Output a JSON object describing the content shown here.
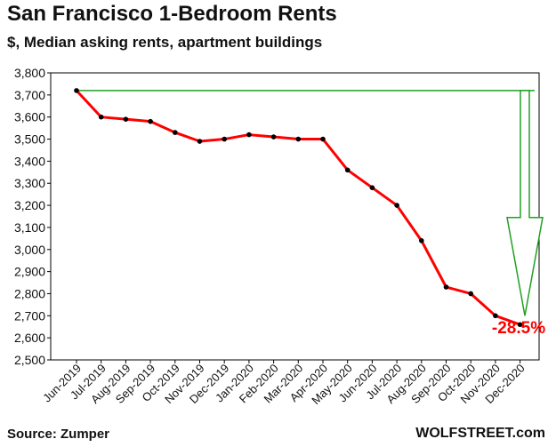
{
  "chart_data": {
    "type": "line",
    "title": "San Francisco 1-Bedroom Rents",
    "subtitle": "$, Median asking rents, apartment buildings",
    "source": "Source: Zumper",
    "brand": "WOLFSTREET.com",
    "categories": [
      "Jun-2019",
      "Jul-2019",
      "Aug-2019",
      "Sep-2019",
      "Oct-2019",
      "Nov-2019",
      "Dec-2019",
      "Jan-2020",
      "Feb-2020",
      "Mar-2020",
      "Apr-2020",
      "May-2020",
      "Jun-2020",
      "Jul-2020",
      "Aug-2020",
      "Sep-2020",
      "Oct-2020",
      "Nov-2020",
      "Dec-2020"
    ],
    "series": [
      {
        "values": [
          3720,
          3600,
          3590,
          3580,
          3530,
          3490,
          3500,
          3520,
          3510,
          3500,
          3500,
          3360,
          3280,
          3200,
          3040,
          2830,
          2800,
          2700,
          2660
        ],
        "color": "#ff0000",
        "marker_color": "#000000"
      }
    ],
    "yticks": [
      "2,500",
      "2,600",
      "2,700",
      "2,800",
      "2,900",
      "3,000",
      "3,100",
      "3,200",
      "3,300",
      "3,400",
      "3,500",
      "3,600",
      "3,700",
      "3,800"
    ],
    "ylim": [
      2500,
      3800
    ],
    "grid": false,
    "reference_line": {
      "value": 3720,
      "color": "#22a022"
    },
    "annotation": {
      "text": "-28.5%",
      "color": "#ff0000"
    }
  }
}
